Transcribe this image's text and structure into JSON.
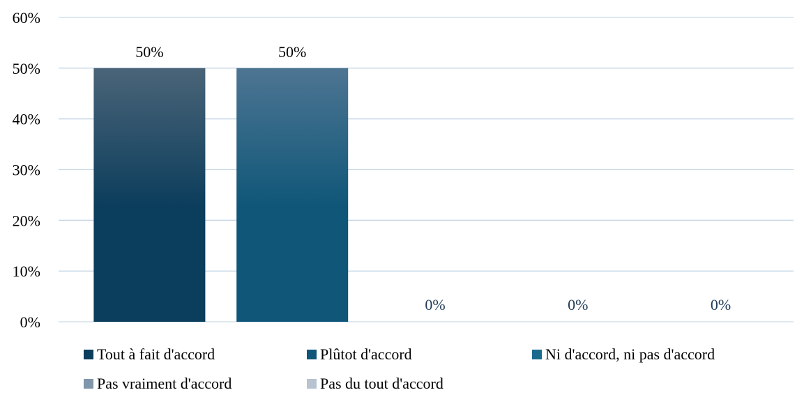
{
  "chart_data": {
    "type": "bar",
    "categories": [
      "Tout à fait d'accord",
      "Plûtot d'accord",
      "Ni d'accord, ni pas d'accord",
      "Pas vraiment d'accord",
      "Pas du tout d'accord"
    ],
    "values": [
      50,
      50,
      0,
      0,
      0
    ],
    "data_labels": [
      "50%",
      "50%",
      "0%",
      "0%",
      "0%"
    ],
    "ylim": [
      0,
      60
    ],
    "yticks": [
      0,
      10,
      20,
      30,
      40,
      50,
      60
    ],
    "ytick_labels": [
      "0%",
      "10%",
      "20%",
      "30%",
      "40%",
      "50%",
      "60%"
    ],
    "grid": true,
    "legend_position": "bottom",
    "colors": {
      "series": [
        "#0b3d5c",
        "#0f5678",
        "#1a6a8e",
        "#7f96ab",
        "#b7c3cf"
      ],
      "series_top": [
        "#4a6478",
        "#4d7592",
        "#1a6a8e",
        "#7f96ab",
        "#b7c3cf"
      ],
      "grid": "#c9d9e6",
      "label_on_bar": "#000000",
      "label_zero": "#1f3b57"
    }
  }
}
